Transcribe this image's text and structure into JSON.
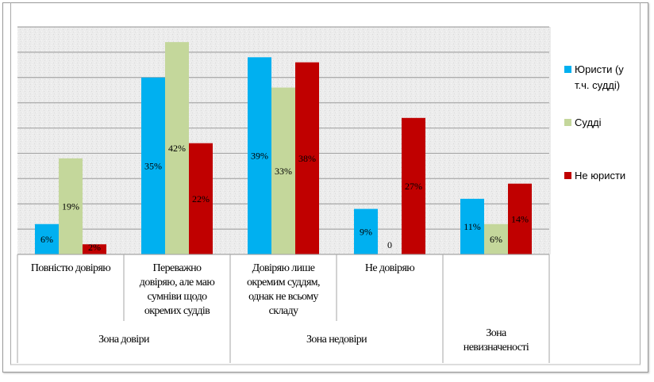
{
  "chart_data": {
    "type": "bar",
    "title": "",
    "xlabel": "",
    "ylabel": "",
    "ylim": [
      0,
      45
    ],
    "grid": true,
    "legend_position": "right",
    "categories": [
      "Повністю довіряю",
      "Переважно довіряю, але маю сумніви щодо окремих суддів",
      "Довіряю лише окремим суддям, однак не всьому складу",
      "Не довіряю",
      ""
    ],
    "category_lines": [
      [
        "Повністю довіряю"
      ],
      [
        "Переважно",
        "довіряю, але маю",
        "сумніви щодо",
        "окремих суддів"
      ],
      [
        "Довіряю лише",
        "окремим суддям,",
        "однак не всьому",
        "складу"
      ],
      [
        "Не довіряю"
      ],
      []
    ],
    "groups": [
      {
        "label": "Зона довіри",
        "lines": [
          "Зона довіри"
        ]
      },
      {
        "label": "Зона недовіри",
        "lines": [
          "Зона недовіри"
        ]
      },
      {
        "label": "Зона невизначеності",
        "lines": [
          "Зона",
          "невизначеності"
        ]
      }
    ],
    "series": [
      {
        "name": "Юристи (у т.ч. судді)",
        "name_lines": [
          "Юристи (у",
          "т.ч. судді)"
        ],
        "color": "#00b0f0",
        "values": [
          6,
          35,
          39,
          9,
          11
        ],
        "labels": [
          "6%",
          "35%",
          "39%",
          "9%",
          "11%"
        ]
      },
      {
        "name": "Судді",
        "name_lines": [
          "Судді"
        ],
        "color": "#c4d79b",
        "values": [
          19,
          42,
          33,
          0,
          6
        ],
        "labels": [
          "19%",
          "42%",
          "33%",
          "0",
          "6%"
        ]
      },
      {
        "name": "Не юристи",
        "name_lines": [
          "Не юристи"
        ],
        "color": "#c00000",
        "values": [
          2,
          22,
          38,
          27,
          14
        ],
        "labels": [
          "2%",
          "22%",
          "38%",
          "27%",
          "14%"
        ]
      }
    ]
  }
}
